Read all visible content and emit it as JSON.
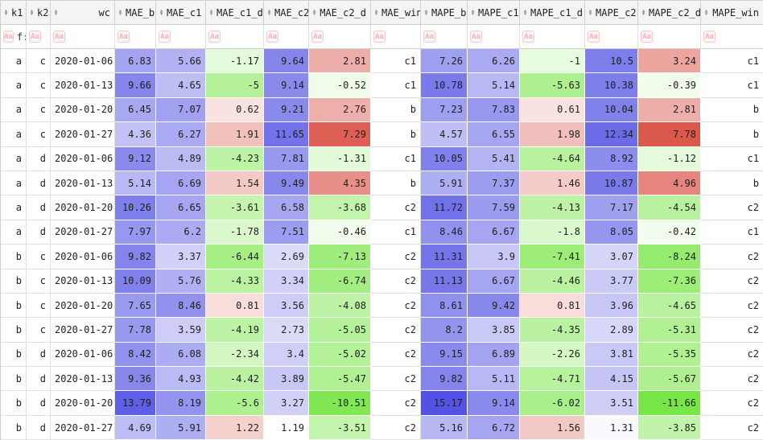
{
  "table": {
    "columns": [
      {
        "id": "k1",
        "label": "k1",
        "type": "key"
      },
      {
        "id": "k2",
        "label": "k2",
        "type": "key"
      },
      {
        "id": "wc",
        "label": "wc",
        "type": "key"
      },
      {
        "id": "MAE_b",
        "label": "MAE_b",
        "type": "value"
      },
      {
        "id": "MAE_c1",
        "label": "MAE_c1",
        "type": "value"
      },
      {
        "id": "MAE_c1_d",
        "label": "MAE_c1_d",
        "type": "delta"
      },
      {
        "id": "MAE_c2",
        "label": "MAE_c2",
        "type": "value"
      },
      {
        "id": "MAE_c2_d",
        "label": "MAE_c2_d",
        "type": "delta"
      },
      {
        "id": "MAE_win",
        "label": "MAE_win",
        "type": "win"
      },
      {
        "id": "MAPE_b",
        "label": "MAPE_b",
        "type": "value"
      },
      {
        "id": "MAPE_c1",
        "label": "MAPE_c1",
        "type": "value"
      },
      {
        "id": "MAPE_c1_d",
        "label": "MAPE_c1_d",
        "type": "delta"
      },
      {
        "id": "MAPE_c2",
        "label": "MAPE_c2",
        "type": "value"
      },
      {
        "id": "MAPE_c2_d",
        "label": "MAPE_c2_d",
        "type": "delta"
      },
      {
        "id": "MAPE_win",
        "label": "MAPE_win",
        "type": "win"
      }
    ],
    "filter": {
      "badge": "Aa",
      "queries": {
        "k1": "f:"
      }
    },
    "rows": [
      [
        "a",
        "c",
        "2020-01-06",
        "6.83",
        "5.66",
        "-1.17",
        "9.64",
        "2.81",
        "c1",
        "7.26",
        "6.26",
        "-1",
        "10.5",
        "3.24",
        "c1"
      ],
      [
        "a",
        "c",
        "2020-01-13",
        "9.66",
        "4.65",
        "-5",
        "9.14",
        "-0.52",
        "c1",
        "10.78",
        "5.14",
        "-5.63",
        "10.38",
        "-0.39",
        "c1"
      ],
      [
        "a",
        "c",
        "2020-01-20",
        "6.45",
        "7.07",
        "0.62",
        "9.21",
        "2.76",
        "b",
        "7.23",
        "7.83",
        "0.61",
        "10.04",
        "2.81",
        "b"
      ],
      [
        "a",
        "c",
        "2020-01-27",
        "4.36",
        "6.27",
        "1.91",
        "11.65",
        "7.29",
        "b",
        "4.57",
        "6.55",
        "1.98",
        "12.34",
        "7.78",
        "b"
      ],
      [
        "a",
        "d",
        "2020-01-06",
        "9.12",
        "4.89",
        "-4.23",
        "7.81",
        "-1.31",
        "c1",
        "10.05",
        "5.41",
        "-4.64",
        "8.92",
        "-1.12",
        "c1"
      ],
      [
        "a",
        "d",
        "2020-01-13",
        "5.14",
        "6.69",
        "1.54",
        "9.49",
        "4.35",
        "b",
        "5.91",
        "7.37",
        "1.46",
        "10.87",
        "4.96",
        "b"
      ],
      [
        "a",
        "d",
        "2020-01-20",
        "10.26",
        "6.65",
        "-3.61",
        "6.58",
        "-3.68",
        "c2",
        "11.72",
        "7.59",
        "-4.13",
        "7.17",
        "-4.54",
        "c2"
      ],
      [
        "a",
        "d",
        "2020-01-27",
        "7.97",
        "6.2",
        "-1.78",
        "7.51",
        "-0.46",
        "c1",
        "8.46",
        "6.67",
        "-1.8",
        "8.05",
        "-0.42",
        "c1"
      ],
      [
        "b",
        "c",
        "2020-01-06",
        "9.82",
        "3.37",
        "-6.44",
        "2.69",
        "-7.13",
        "c2",
        "11.31",
        "3.9",
        "-7.41",
        "3.07",
        "-8.24",
        "c2"
      ],
      [
        "b",
        "c",
        "2020-01-13",
        "10.09",
        "5.76",
        "-4.33",
        "3.34",
        "-6.74",
        "c2",
        "11.13",
        "6.67",
        "-4.46",
        "3.77",
        "-7.36",
        "c2"
      ],
      [
        "b",
        "c",
        "2020-01-20",
        "7.65",
        "8.46",
        "0.81",
        "3.56",
        "-4.08",
        "c2",
        "8.61",
        "9.42",
        "0.81",
        "3.96",
        "-4.65",
        "c2"
      ],
      [
        "b",
        "c",
        "2020-01-27",
        "7.78",
        "3.59",
        "-4.19",
        "2.73",
        "-5.05",
        "c2",
        "8.2",
        "3.85",
        "-4.35",
        "2.89",
        "-5.31",
        "c2"
      ],
      [
        "b",
        "d",
        "2020-01-06",
        "8.42",
        "6.08",
        "-2.34",
        "3.4",
        "-5.02",
        "c2",
        "9.15",
        "6.89",
        "-2.26",
        "3.81",
        "-5.35",
        "c2"
      ],
      [
        "b",
        "d",
        "2020-01-13",
        "9.36",
        "4.93",
        "-4.42",
        "3.89",
        "-5.47",
        "c2",
        "9.82",
        "5.11",
        "-4.71",
        "4.15",
        "-5.67",
        "c2"
      ],
      [
        "b",
        "d",
        "2020-01-20",
        "13.79",
        "8.19",
        "-5.6",
        "3.27",
        "-10.51",
        "c2",
        "15.17",
        "9.14",
        "-6.02",
        "3.51",
        "-11.66",
        "c2"
      ],
      [
        "b",
        "d",
        "2020-01-27",
        "4.69",
        "5.91",
        "1.22",
        "1.19",
        "-3.51",
        "c2",
        "5.16",
        "6.72",
        "1.56",
        "1.31",
        "-3.85",
        "c2"
      ]
    ]
  },
  "palette": {
    "header_bg": "#f4f4f4",
    "grid_border": "#cfcfcf",
    "cell_border": "#e0e0e0",
    "text": "#1f1f1f",
    "sort_icon": "#9a9a9a",
    "value_base": "#5252e4",
    "delta_negative_base": "#78e646",
    "delta_positive_base": "#db584d",
    "badge_border": "#f3c9cd",
    "badge_bg": "#fdf4f5",
    "badge_text": "#edb6bc",
    "query_ident": "#333344",
    "query_op": "#cc4433"
  }
}
